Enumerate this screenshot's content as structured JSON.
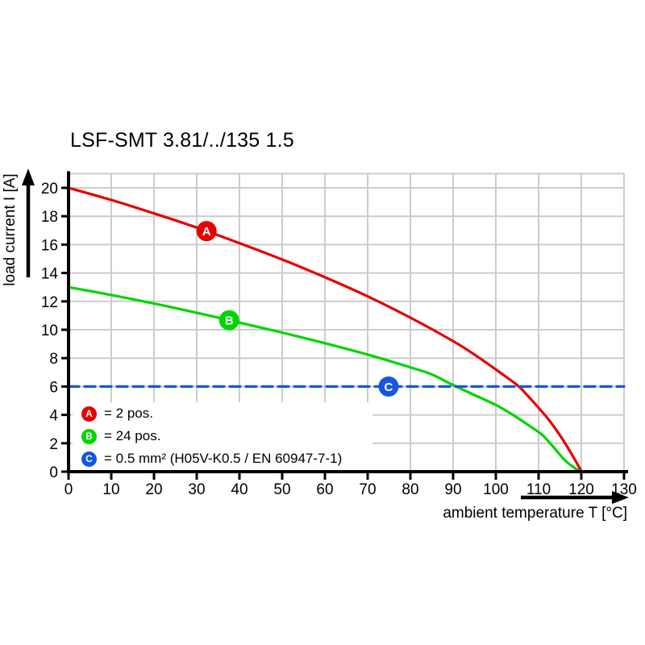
{
  "title": "LSF-SMT 3.81/../135 1.5",
  "chart_data": {
    "type": "line",
    "title": "LSF-SMT 3.81/../135 1.5",
    "xlabel": "ambient temperature T [°C]",
    "ylabel": "load current I [A]",
    "xlim": [
      0,
      130
    ],
    "ylim": [
      0,
      21
    ],
    "x_ticks": [
      0,
      10,
      20,
      30,
      40,
      50,
      60,
      70,
      80,
      90,
      100,
      110,
      120,
      130
    ],
    "y_ticks": [
      0,
      2,
      4,
      6,
      8,
      10,
      12,
      14,
      16,
      18,
      20
    ],
    "grid": true,
    "grid_color": "#cccccc",
    "axis_color": "#000000",
    "background": "#ffffff",
    "legend_position": "bottom-left-inside",
    "series": [
      {
        "key": "A",
        "name": "2 pos.",
        "color": "#e60000",
        "style": "solid",
        "x": [
          0,
          10,
          20,
          30,
          40,
          50,
          60,
          70,
          80,
          90,
          95,
          100,
          105,
          107,
          110,
          112,
          114,
          116,
          118,
          119.5,
          120
        ],
        "y": [
          20,
          19.15,
          18.2,
          17.2,
          16.1,
          14.95,
          13.7,
          12.35,
          10.85,
          9.2,
          8.25,
          7.2,
          6.1,
          5.5,
          4.5,
          3.8,
          3.0,
          2.1,
          1.1,
          0.3,
          0
        ],
        "marker": {
          "letter": "A",
          "x": 32.3,
          "y": 16.95
        }
      },
      {
        "key": "B",
        "name": "24 pos.",
        "color": "#00d500",
        "style": "solid",
        "x": [
          0,
          10,
          20,
          30,
          40,
          50,
          60,
          70,
          80,
          85,
          90,
          95,
          100,
          104,
          108,
          111,
          114,
          116,
          118,
          119.5,
          120
        ],
        "y": [
          13,
          12.45,
          11.85,
          11.2,
          10.5,
          9.8,
          9.05,
          8.25,
          7.35,
          6.85,
          6.1,
          5.4,
          4.7,
          4.0,
          3.2,
          2.55,
          1.55,
          0.85,
          0.35,
          0.05,
          0
        ],
        "marker": {
          "letter": "B",
          "x": 37.6,
          "y": 10.67
        }
      },
      {
        "key": "C",
        "name": "0.5 mm² (H05V-K0.5 / EN 60947-7-1)",
        "color": "#1557dd",
        "style": "dashed",
        "x": [
          0,
          130
        ],
        "y": [
          6,
          6
        ],
        "marker": {
          "letter": "C",
          "x": 74.9,
          "y": 6
        }
      }
    ],
    "legend": [
      {
        "key": "A",
        "text": "= 2 pos."
      },
      {
        "key": "B",
        "text": "= 24 pos."
      },
      {
        "key": "C",
        "text": "= 0.5 mm² (H05V-K0.5 / EN 60947-7-1)"
      }
    ]
  }
}
